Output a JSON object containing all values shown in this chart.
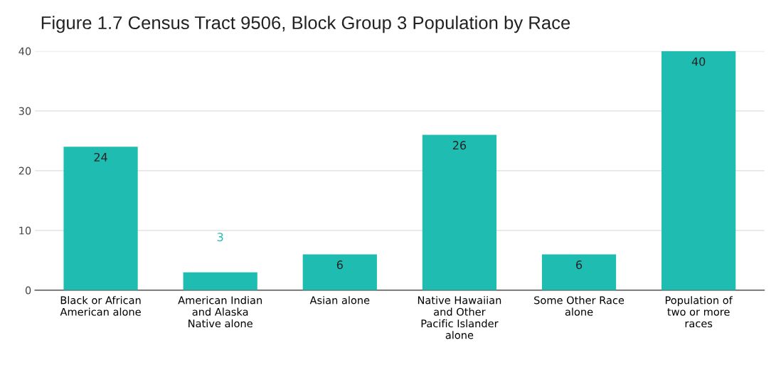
{
  "chart_data": {
    "type": "bar",
    "title": "Figure 1.7 Census Tract 9506, Block Group 3 Population by Race",
    "categories": [
      "Black or African American alone",
      "American Indian and Alaska Native alone",
      "Asian alone",
      "Native Hawaiian and Other Pacific Islander alone",
      "Some Other Race alone",
      "Population of two or more races"
    ],
    "values": [
      24,
      3,
      6,
      26,
      6,
      40
    ],
    "color": "#1fbdb1",
    "ylim": [
      0,
      40
    ],
    "yticks": [
      0,
      10,
      20,
      30,
      40
    ],
    "grid": "y",
    "data_labels": true
  }
}
